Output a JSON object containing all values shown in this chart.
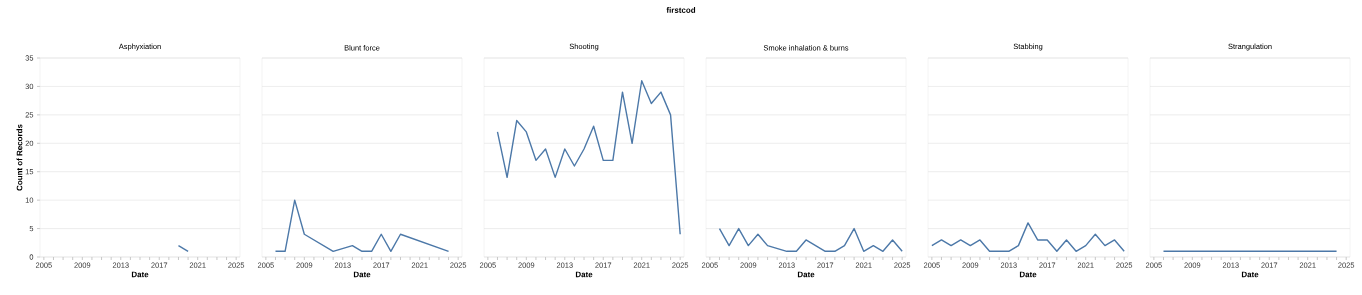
{
  "chart_data": [
    {
      "type": "line",
      "title": "Asphyxiation",
      "xlabel": "Date",
      "ylabel": "Count of Records",
      "annotations": [
        "firstcod"
      ],
      "color": "#4c78a8",
      "grid": "y",
      "x": [
        2019,
        2020
      ],
      "values": [
        2,
        1
      ],
      "xlim": [
        2004.6,
        2025.4
      ],
      "ylim": [
        0,
        35
      ],
      "yticks": [
        0,
        5,
        10,
        15,
        20,
        25,
        30,
        35
      ],
      "xticks": [
        2005,
        {
          "value": 2006,
          "label": null
        },
        {
          "value": 2007,
          "label": null
        },
        {
          "value": 2008,
          "label": null
        },
        2009,
        {
          "value": 2010,
          "label": null
        },
        {
          "value": 2011,
          "label": null
        },
        {
          "value": 2012,
          "label": null
        },
        2013,
        {
          "value": 2014,
          "label": null
        },
        {
          "value": 2015,
          "label": null
        },
        {
          "value": 2016,
          "label": null
        },
        2017,
        {
          "value": 2018,
          "label": null
        },
        {
          "value": 2019,
          "label": null
        },
        {
          "value": 2020,
          "label": null
        },
        2021,
        {
          "value": 2022,
          "label": null
        },
        {
          "value": 2023,
          "label": null
        },
        {
          "value": 2024,
          "label": null
        },
        2025
      ]
    },
    {
      "type": "line",
      "title": "Blunt force",
      "xlabel": "Date",
      "color": "#4c78a8",
      "grid": "y",
      "tick_labels": "x",
      "x": [
        2006,
        2007,
        2008,
        2009,
        2012,
        2014,
        2015,
        2016,
        2017,
        2018,
        2019,
        2024
      ],
      "values": [
        1,
        1,
        10,
        4,
        1,
        2,
        1,
        1,
        4,
        1,
        4,
        1
      ],
      "xlim": [
        2004.6,
        2025.4
      ],
      "ylim": [
        0,
        35
      ],
      "yticks": [
        0,
        5,
        10,
        15,
        20,
        25,
        30,
        35
      ],
      "xticks": [
        2005,
        {
          "value": 2006,
          "label": null
        },
        {
          "value": 2007,
          "label": null
        },
        {
          "value": 2008,
          "label": null
        },
        2009,
        {
          "value": 2010,
          "label": null
        },
        {
          "value": 2011,
          "label": null
        },
        {
          "value": 2012,
          "label": null
        },
        2013,
        {
          "value": 2014,
          "label": null
        },
        {
          "value": 2015,
          "label": null
        },
        {
          "value": 2016,
          "label": null
        },
        2017,
        {
          "value": 2018,
          "label": null
        },
        {
          "value": 2019,
          "label": null
        },
        {
          "value": 2020,
          "label": null
        },
        2021,
        {
          "value": 2022,
          "label": null
        },
        {
          "value": 2023,
          "label": null
        },
        {
          "value": 2024,
          "label": null
        },
        2025
      ]
    },
    {
      "type": "line",
      "title": "Shooting",
      "xlabel": "Date",
      "color": "#4c78a8",
      "grid": "y",
      "tick_labels": "x",
      "x": [
        2006,
        2007,
        2008,
        2009,
        2010,
        2011,
        2012,
        2013,
        2014,
        2015,
        2016,
        2017,
        2018,
        2019,
        2020,
        2021,
        2022,
        2023,
        2024,
        2025
      ],
      "values": [
        22,
        14,
        24,
        22,
        17,
        19,
        14,
        19,
        16,
        19,
        23,
        17,
        17,
        29,
        20,
        31,
        27,
        29,
        25,
        4
      ],
      "xlim": [
        2004.6,
        2025.4
      ],
      "ylim": [
        0,
        35
      ],
      "yticks": [
        0,
        5,
        10,
        15,
        20,
        25,
        30,
        35
      ],
      "xticks": [
        2005,
        {
          "value": 2006,
          "label": null
        },
        {
          "value": 2007,
          "label": null
        },
        {
          "value": 2008,
          "label": null
        },
        2009,
        {
          "value": 2010,
          "label": null
        },
        {
          "value": 2011,
          "label": null
        },
        {
          "value": 2012,
          "label": null
        },
        2013,
        {
          "value": 2014,
          "label": null
        },
        {
          "value": 2015,
          "label": null
        },
        {
          "value": 2016,
          "label": null
        },
        2017,
        {
          "value": 2018,
          "label": null
        },
        {
          "value": 2019,
          "label": null
        },
        {
          "value": 2020,
          "label": null
        },
        2021,
        {
          "value": 2022,
          "label": null
        },
        {
          "value": 2023,
          "label": null
        },
        {
          "value": 2024,
          "label": null
        },
        2025
      ]
    },
    {
      "type": "line",
      "title": "Smoke inhalation & burns",
      "xlabel": "Date",
      "color": "#4c78a8",
      "grid": "y",
      "tick_labels": "x",
      "x": [
        2006,
        2007,
        2008,
        2009,
        2010,
        2011,
        2013,
        2014,
        2015,
        2017,
        2018,
        2019,
        2020,
        2021,
        2022,
        2023,
        2024,
        2025
      ],
      "values": [
        5,
        2,
        5,
        2,
        4,
        2,
        1,
        1,
        3,
        1,
        1,
        2,
        5,
        1,
        2,
        1,
        3,
        1
      ],
      "xlim": [
        2004.6,
        2025.4
      ],
      "ylim": [
        0,
        35
      ],
      "yticks": [
        0,
        5,
        10,
        15,
        20,
        25,
        30,
        35
      ],
      "xticks": [
        2005,
        {
          "value": 2006,
          "label": null
        },
        {
          "value": 2007,
          "label": null
        },
        {
          "value": 2008,
          "label": null
        },
        2009,
        {
          "value": 2010,
          "label": null
        },
        {
          "value": 2011,
          "label": null
        },
        {
          "value": 2012,
          "label": null
        },
        2013,
        {
          "value": 2014,
          "label": null
        },
        {
          "value": 2015,
          "label": null
        },
        {
          "value": 2016,
          "label": null
        },
        2017,
        {
          "value": 2018,
          "label": null
        },
        {
          "value": 2019,
          "label": null
        },
        {
          "value": 2020,
          "label": null
        },
        2021,
        {
          "value": 2022,
          "label": null
        },
        {
          "value": 2023,
          "label": null
        },
        {
          "value": 2024,
          "label": null
        },
        2025
      ]
    },
    {
      "type": "line",
      "title": "Stabbing",
      "xlabel": "Date",
      "color": "#4c78a8",
      "grid": "y",
      "tick_labels": "x",
      "x": [
        2005,
        2006,
        2007,
        2008,
        2009,
        2010,
        2011,
        2012,
        2013,
        2014,
        2015,
        2016,
        2017,
        2018,
        2019,
        2020,
        2021,
        2022,
        2023,
        2024,
        2025
      ],
      "values": [
        2,
        3,
        2,
        3,
        2,
        3,
        1,
        1,
        1,
        2,
        6,
        3,
        3,
        1,
        3,
        1,
        2,
        4,
        2,
        3,
        1
      ],
      "xlim": [
        2004.6,
        2025.4
      ],
      "ylim": [
        0,
        35
      ],
      "yticks": [
        0,
        5,
        10,
        15,
        20,
        25,
        30,
        35
      ],
      "xticks": [
        2005,
        {
          "value": 2006,
          "label": null
        },
        {
          "value": 2007,
          "label": null
        },
        {
          "value": 2008,
          "label": null
        },
        2009,
        {
          "value": 2010,
          "label": null
        },
        {
          "value": 2011,
          "label": null
        },
        {
          "value": 2012,
          "label": null
        },
        2013,
        {
          "value": 2014,
          "label": null
        },
        {
          "value": 2015,
          "label": null
        },
        {
          "value": 2016,
          "label": null
        },
        2017,
        {
          "value": 2018,
          "label": null
        },
        {
          "value": 2019,
          "label": null
        },
        {
          "value": 2020,
          "label": null
        },
        2021,
        {
          "value": 2022,
          "label": null
        },
        {
          "value": 2023,
          "label": null
        },
        {
          "value": 2024,
          "label": null
        },
        2025
      ]
    },
    {
      "type": "line",
      "title": "Strangulation",
      "xlabel": "Date",
      "color": "#4c78a8",
      "grid": "y",
      "tick_labels": "x",
      "x": [
        2006,
        2008,
        2022,
        2024
      ],
      "values": [
        1,
        1,
        1,
        1
      ],
      "xlim": [
        2004.6,
        2025.4
      ],
      "ylim": [
        0,
        35
      ],
      "yticks": [
        0,
        5,
        10,
        15,
        20,
        25,
        30,
        35
      ],
      "xticks": [
        2005,
        {
          "value": 2006,
          "label": null
        },
        {
          "value": 2007,
          "label": null
        },
        {
          "value": 2008,
          "label": null
        },
        2009,
        {
          "value": 2010,
          "label": null
        },
        {
          "value": 2011,
          "label": null
        },
        {
          "value": 2012,
          "label": null
        },
        2013,
        {
          "value": 2014,
          "label": null
        },
        {
          "value": 2015,
          "label": null
        },
        {
          "value": 2016,
          "label": null
        },
        2017,
        {
          "value": 2018,
          "label": null
        },
        {
          "value": 2019,
          "label": null
        },
        {
          "value": 2020,
          "label": null
        },
        2021,
        {
          "value": 2022,
          "label": null
        },
        {
          "value": 2023,
          "label": null
        },
        {
          "value": 2024,
          "label": null
        },
        2025
      ]
    }
  ]
}
